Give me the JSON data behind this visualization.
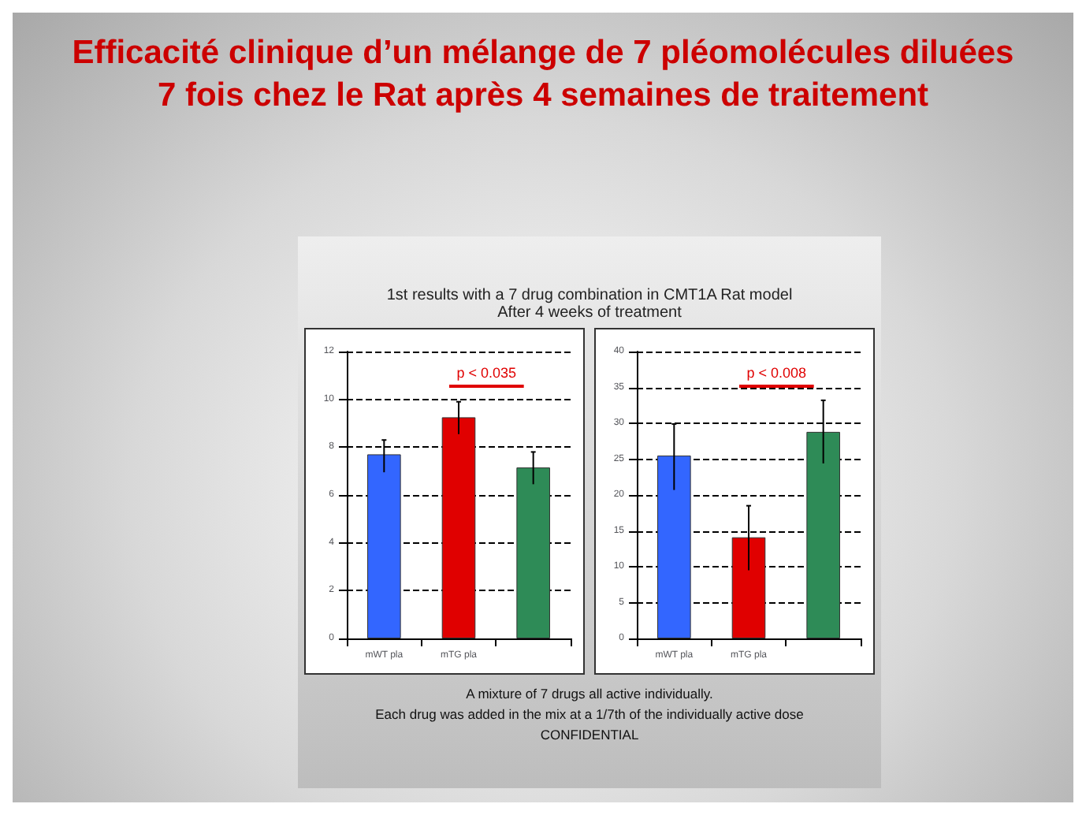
{
  "chart_data": [
    {
      "type": "bar",
      "title": "Efficacité clinique d’un mélange de 7 pléomolécules diluées 7 fois  chez le Rat  après 4 semaines de traitement",
      "subtitle": "1st results with a 7 drug combination in CMT1A Rat model\nAfter 4 weeks of treatment",
      "categories": [
        "mWT pla",
        "mTG pla",
        null
      ],
      "values": [
        7.7,
        9.25,
        7.15
      ],
      "colors": [
        "#3366ff",
        "#e00000",
        "#2e8b57"
      ],
      "errors": [
        [
          6.95,
          8.3
        ],
        [
          8.55,
          9.9
        ],
        [
          6.45,
          7.8
        ]
      ],
      "ylim": [
        0,
        12
      ],
      "yticks": [
        0,
        2,
        4,
        6,
        8,
        10,
        12
      ],
      "grid": "y",
      "annotations": [
        "p < 0.035"
      ]
    },
    {
      "type": "bar",
      "categories": [
        "mWT pla",
        "mTG pla",
        null
      ],
      "values": [
        25.5,
        14.1,
        28.8
      ],
      "colors": [
        "#3366ff",
        "#e00000",
        "#2e8b57"
      ],
      "errors": [
        [
          20.7,
          29.9
        ],
        [
          9.5,
          18.5
        ],
        [
          24.4,
          33.2
        ]
      ],
      "ylim": [
        0,
        40
      ],
      "yticks": [
        0,
        5,
        10,
        15,
        20,
        25,
        30,
        35,
        40
      ],
      "grid": "y",
      "annotations": [
        "p < 0.008",
        "A mixture of 7 drugs all active individually.\nEach drug was added in the mix at a 1/7th of the individually active dose",
        "CONFIDENTIAL"
      ]
    }
  ]
}
